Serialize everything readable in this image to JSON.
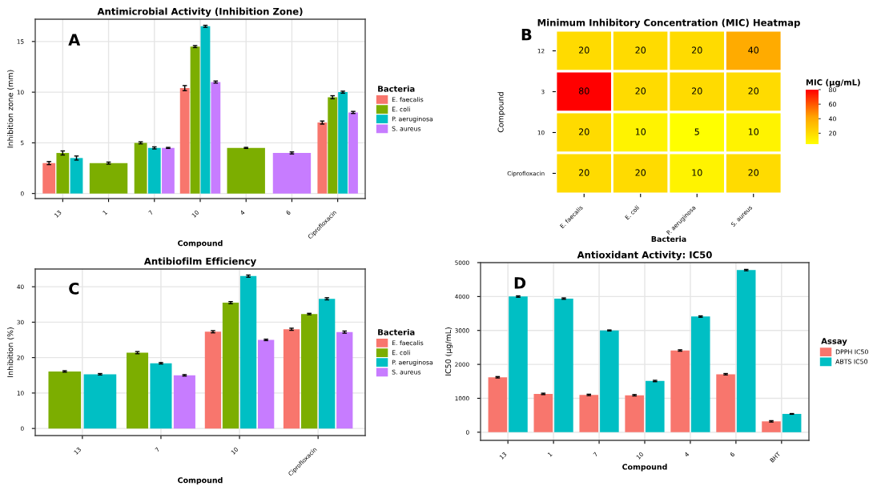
{
  "chart_data": [
    {
      "type": "bar",
      "title": "Antimicrobial Activity (Inhibition Zone)",
      "xlabel": "Compound",
      "ylabel": "Inhibition zone (mm)",
      "legend_title": "Bacteria",
      "legend": "right",
      "grid": true,
      "annotations": [
        "A"
      ],
      "categories": [
        "13",
        "1",
        "7",
        "10",
        "4",
        "6",
        "Ciprofloxacin"
      ],
      "ylim": [
        -0.5,
        17.2
      ],
      "yticks": [
        0,
        5,
        10,
        15
      ],
      "series": [
        {
          "name": "E. faecalis",
          "color": "#f8766d",
          "values": [
            3.0,
            null,
            null,
            10.4,
            null,
            null,
            7.0
          ],
          "errors": [
            0.15,
            null,
            null,
            0.25,
            null,
            null,
            0.15
          ]
        },
        {
          "name": "E. coli",
          "color": "#7cae00",
          "values": [
            4.0,
            3.0,
            5.0,
            14.5,
            4.5,
            null,
            9.5
          ],
          "errors": [
            0.2,
            0.1,
            0.1,
            0.1,
            0.05,
            null,
            0.15
          ]
        },
        {
          "name": "P. aeruginosa",
          "color": "#00bfc4",
          "values": [
            3.5,
            null,
            4.5,
            16.5,
            null,
            null,
            10.0
          ],
          "errors": [
            0.2,
            null,
            0.1,
            0.1,
            null,
            null,
            0.1
          ]
        },
        {
          "name": "S. aureus",
          "color": "#c77cff",
          "values": [
            null,
            null,
            4.5,
            11.0,
            null,
            4.0,
            8.0
          ],
          "errors": [
            null,
            null,
            0.05,
            0.1,
            null,
            0.1,
            0.1
          ]
        }
      ]
    },
    {
      "type": "heatmap",
      "title": "Minimum Inhibitory Concentration (MIC) Heatmap",
      "xlabel": "Bacteria",
      "ylabel": "Compound",
      "clabel": "MIC (µg/mL)",
      "data_labels": true,
      "annotations": [
        "B"
      ],
      "categories": [
        "E. faecalis",
        "E. coli",
        "P. aeruginosa",
        "S. aureus"
      ],
      "y_categories": [
        "12",
        "3",
        "10",
        "Ciprofloxacin"
      ],
      "cells": [
        [
          20,
          20,
          20,
          40
        ],
        [
          80,
          20,
          20,
          20
        ],
        [
          20,
          10,
          5,
          10
        ],
        [
          20,
          20,
          10,
          20
        ]
      ],
      "clim": [
        5,
        80
      ],
      "cticks": [
        20,
        40,
        60,
        80
      ]
    },
    {
      "type": "bar",
      "title": "Antibiofilm Efficiency",
      "xlabel": "Compound",
      "ylabel": "Inhibition (%)",
      "legend_title": "Bacteria",
      "legend": "right",
      "grid": true,
      "annotations": [
        "C"
      ],
      "categories": [
        "13",
        "7",
        "10",
        "Ciprofloxacin"
      ],
      "ylim": [
        -2,
        45
      ],
      "yticks": [
        0,
        10,
        20,
        30,
        40
      ],
      "series": [
        {
          "name": "E. faecalis",
          "color": "#f8766d",
          "values": [
            null,
            null,
            27.3,
            28.0
          ],
          "errors": [
            null,
            null,
            0.3,
            0.3
          ]
        },
        {
          "name": "E. coli",
          "color": "#7cae00",
          "values": [
            16.1,
            21.4,
            35.5,
            32.3
          ],
          "errors": [
            0.2,
            0.3,
            0.3,
            0.2
          ]
        },
        {
          "name": "P. aeruginosa",
          "color": "#00bfc4",
          "values": [
            15.3,
            18.4,
            43.0,
            36.6
          ],
          "errors": [
            0.2,
            0.2,
            0.3,
            0.3
          ]
        },
        {
          "name": "S. aureus",
          "color": "#c77cff",
          "values": [
            null,
            15.0,
            25.0,
            27.2
          ],
          "errors": [
            null,
            0.2,
            0.2,
            0.3
          ]
        }
      ]
    },
    {
      "type": "bar",
      "title": "Antioxidant Activity: IC50",
      "xlabel": "Compound",
      "ylabel": "IC50 (µg/mL)",
      "legend_title": "Assay",
      "legend": "right",
      "grid": true,
      "annotations": [
        "D"
      ],
      "categories": [
        "13",
        "1",
        "7",
        "10",
        "4",
        "6",
        "BHT"
      ],
      "ylim": [
        -240,
        5000
      ],
      "yticks": [
        0,
        1000,
        2000,
        3000,
        4000,
        5000
      ],
      "series": [
        {
          "name": "DPPH IC50",
          "color": "#f8766d",
          "values": [
            1620,
            1130,
            1100,
            1090,
            2410,
            1710,
            320
          ],
          "errors": [
            20,
            20,
            20,
            20,
            20,
            20,
            20
          ]
        },
        {
          "name": "ABTS IC50",
          "color": "#00bfc4",
          "values": [
            4000,
            3940,
            3000,
            1510,
            3410,
            4780,
            540
          ],
          "errors": [
            20,
            20,
            15,
            20,
            20,
            20,
            10
          ]
        }
      ]
    }
  ]
}
